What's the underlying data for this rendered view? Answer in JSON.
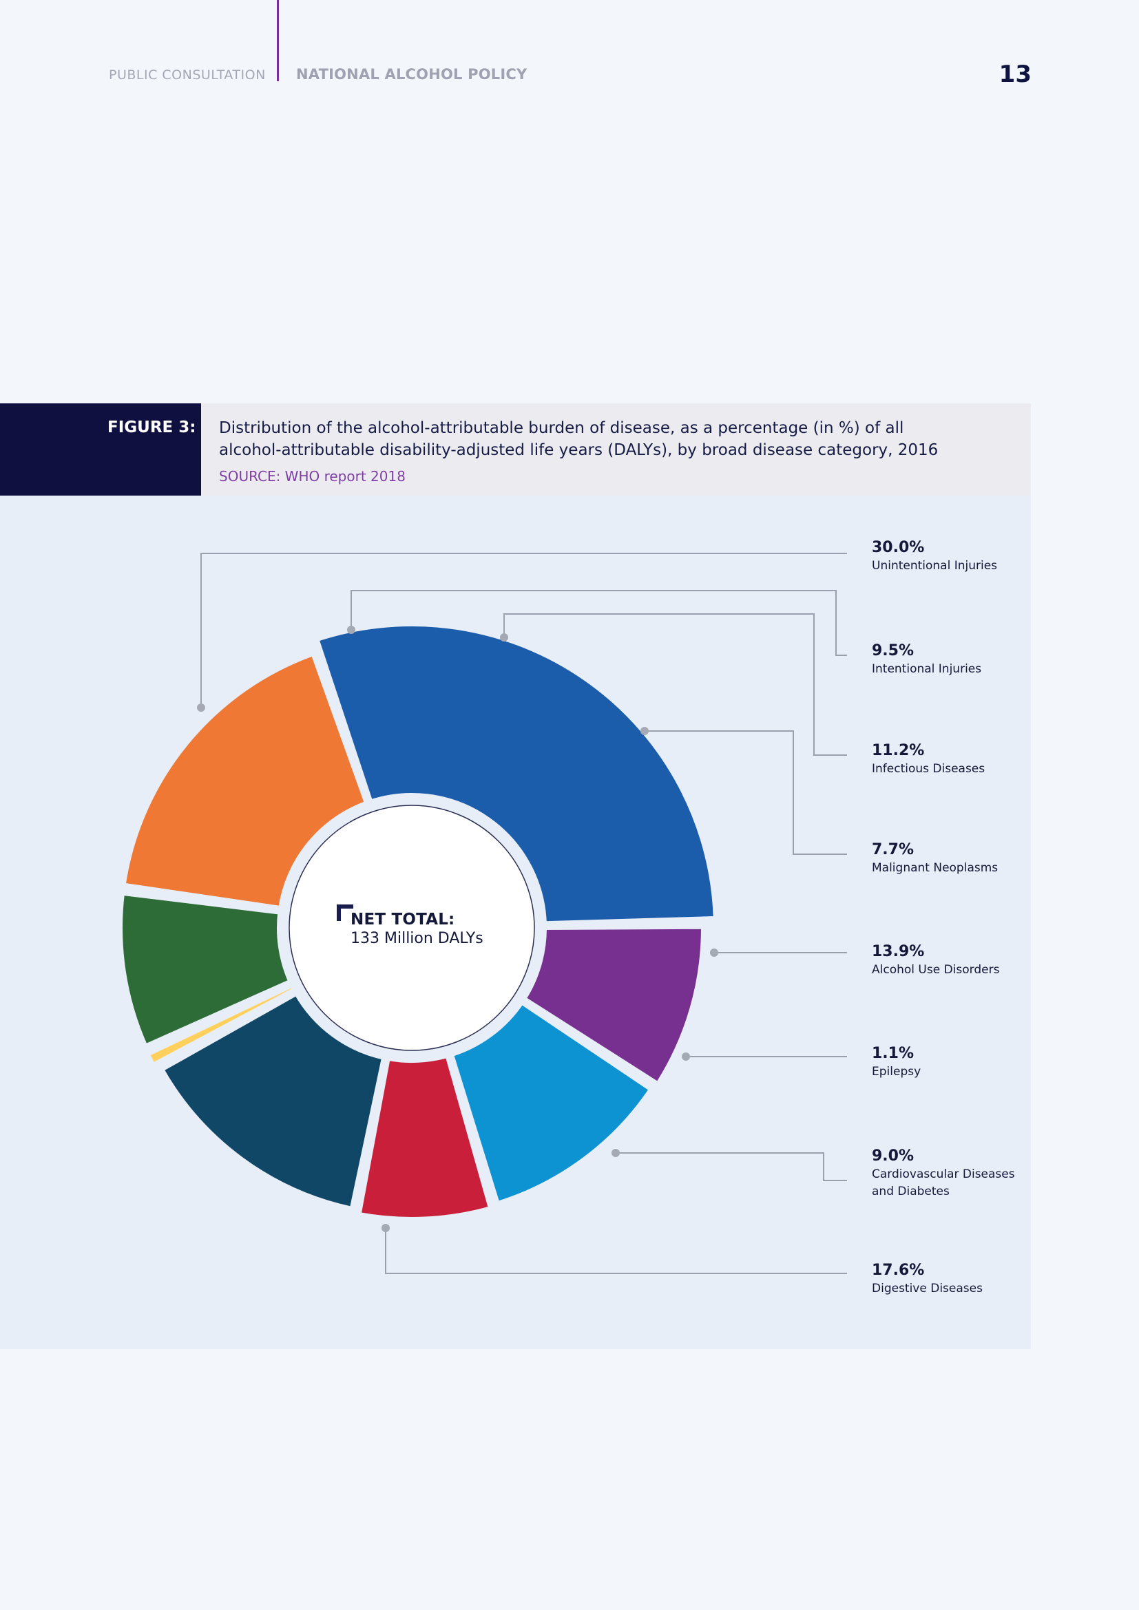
{
  "header": {
    "left": "PUBLIC CONSULTATION",
    "middle": "NATIONAL ALCOHOL POLICY",
    "page_number": "13"
  },
  "figure": {
    "label": "FIGURE 3:",
    "caption_line1": "Distribution of the alcohol-attributable burden of disease, as a percentage (in %) of all",
    "caption_line2": "alcohol-attributable disability-adjusted life years (DALYs), by broad disease category, 2016",
    "source": "SOURCE: WHO report 2018"
  },
  "center": {
    "title": "NET TOTAL:",
    "value": "133 Million DALYs"
  },
  "chart_data": {
    "type": "pie",
    "title": "",
    "categories": [
      "Unintentional Injuries",
      "Intentional Injuries",
      "Infectious Diseases",
      "Malignant Neoplasms",
      "Alcohol Use Disorders",
      "Epilepsy",
      "Cardiovascular Diseases and Diabetes",
      "Digestive Diseases"
    ],
    "values": [
      30.0,
      9.5,
      11.2,
      7.7,
      13.9,
      1.1,
      9.0,
      17.6
    ],
    "value_labels": [
      "30.0%",
      "9.5%",
      "11.2%",
      "7.7%",
      "13.9%",
      "1.1%",
      "9.0%",
      "17.6%"
    ],
    "colors": [
      "#1b5cab",
      "#77308f",
      "#0d92d2",
      "#c91f3b",
      "#114766",
      "#ffd15c",
      "#2d6c37",
      "#ef7835"
    ],
    "legend_placement": "right"
  }
}
